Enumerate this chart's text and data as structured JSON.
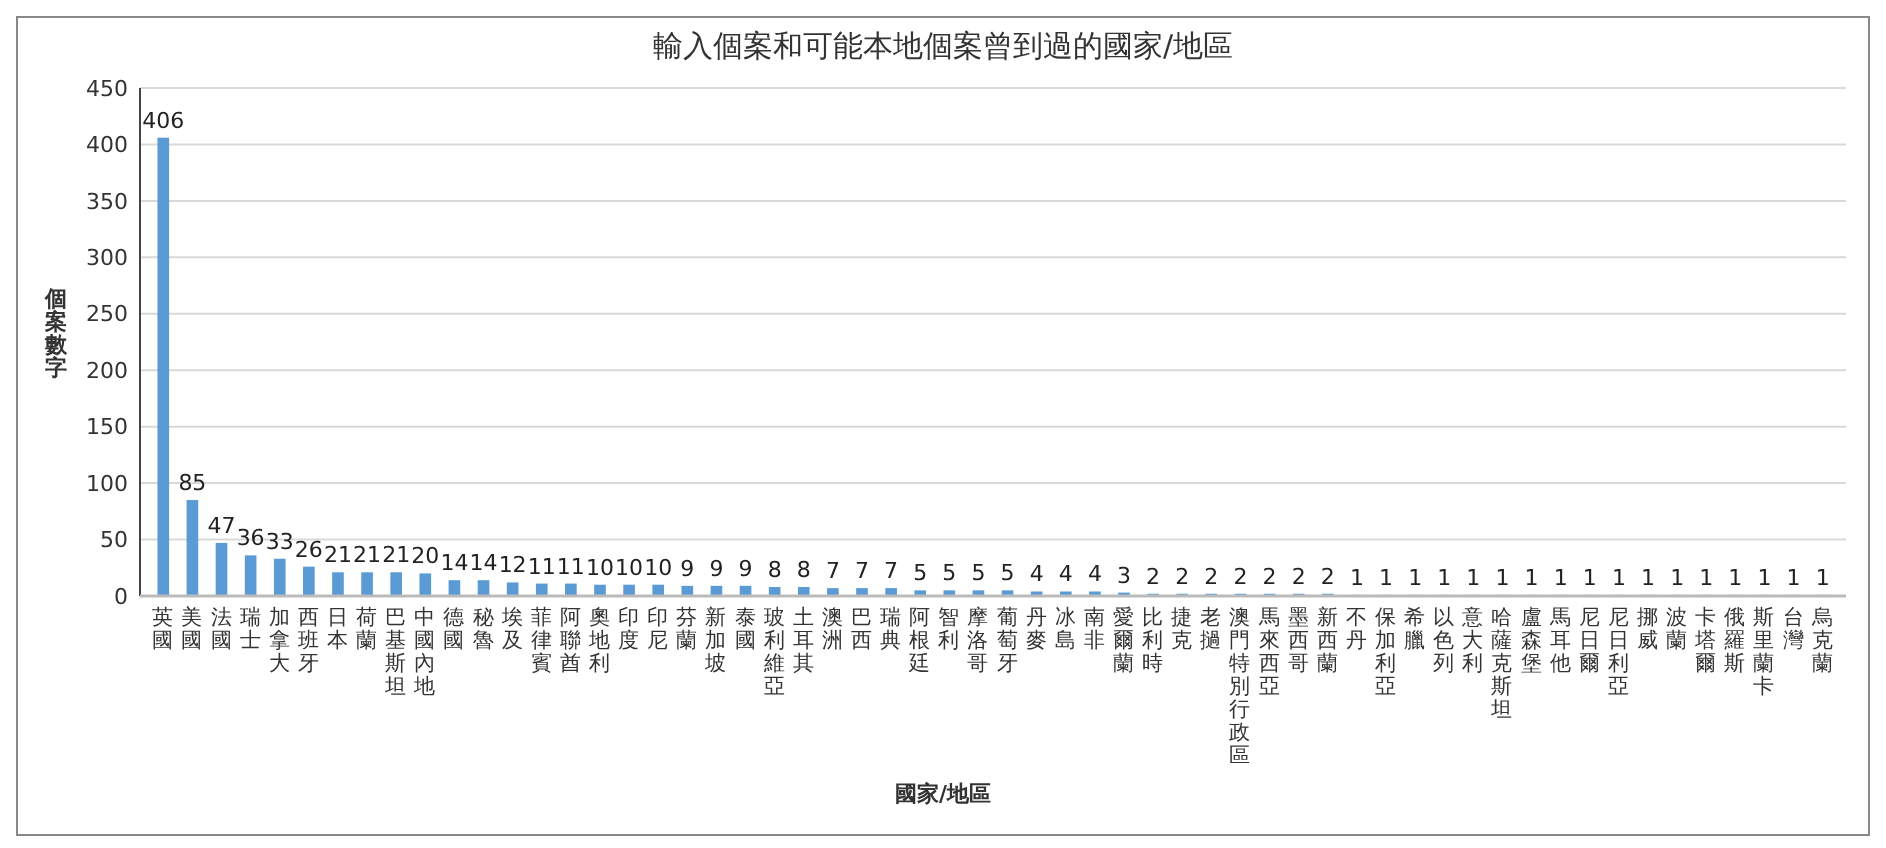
{
  "chart_data": {
    "type": "bar",
    "title": "輸入個案和可能本地個案曾到過的國家/地區",
    "xlabel": "國家/地區",
    "ylabel": "個案數字",
    "categories": [
      "英國",
      "美國",
      "法國",
      "瑞士",
      "加拿大",
      "西班牙",
      "日本",
      "荷蘭",
      "巴基斯坦",
      "中國內地",
      "德國",
      "秘魯",
      "埃及",
      "菲律賓",
      "阿聯酋",
      "奧地利",
      "印度",
      "印尼",
      "芬蘭",
      "新加坡",
      "泰國",
      "玻利維亞",
      "土耳其",
      "澳洲",
      "巴西",
      "瑞典",
      "阿根廷",
      "智利",
      "摩洛哥",
      "葡萄牙",
      "丹麥",
      "冰島",
      "南非",
      "愛爾蘭",
      "比利時",
      "捷克",
      "老撾",
      "澳門特別行政區",
      "馬來西亞",
      "墨西哥",
      "新西蘭",
      "不丹",
      "保加利亞",
      "希臘",
      "以色列",
      "意大利",
      "哈薩克斯坦",
      "盧森堡",
      "馬耳他",
      "尼日爾",
      "尼日利亞",
      "挪威",
      "波蘭",
      "卡塔爾",
      "俄羅斯",
      "斯里蘭卡",
      "台灣",
      "烏克蘭"
    ],
    "values": [
      406,
      85,
      47,
      36,
      33,
      26,
      21,
      21,
      21,
      20,
      14,
      14,
      12,
      11,
      11,
      10,
      10,
      10,
      9,
      9,
      9,
      8,
      8,
      7,
      7,
      7,
      5,
      5,
      5,
      5,
      4,
      4,
      4,
      3,
      2,
      2,
      2,
      2,
      2,
      2,
      2,
      1,
      1,
      1,
      1,
      1,
      1,
      1,
      1,
      1,
      1,
      1,
      1,
      1,
      1,
      1,
      1,
      1
    ],
    "color": "#5b9bd5",
    "ylim": [
      0,
      450
    ],
    "yticks": [
      0,
      50,
      100,
      150,
      200,
      250,
      300,
      350,
      400,
      450
    ],
    "grid": "y",
    "data_labels": true
  }
}
